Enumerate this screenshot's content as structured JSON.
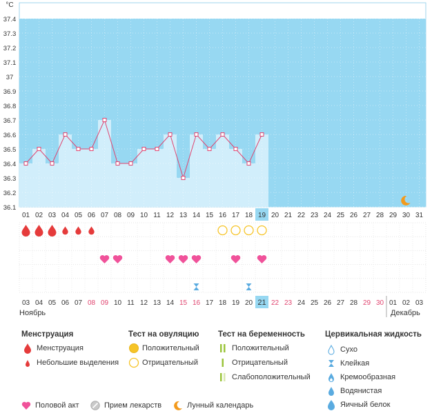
{
  "chart_data": {
    "type": "line",
    "unit": "°C",
    "ylim": [
      36.1,
      37.4
    ],
    "y_ticks": [
      "36.1",
      "36.2",
      "36.3",
      "36.4",
      "36.5",
      "36.6",
      "36.7",
      "36.8",
      "36.9",
      "37",
      "37.1",
      "37.2",
      "37.3",
      "37.4"
    ],
    "cycle_days": [
      "01",
      "02",
      "03",
      "04",
      "05",
      "06",
      "07",
      "08",
      "09",
      "10",
      "11",
      "12",
      "13",
      "14",
      "15",
      "16",
      "17",
      "18",
      "19",
      "20",
      "21",
      "22",
      "23",
      "24",
      "25",
      "26",
      "27",
      "28",
      "29",
      "30",
      "31"
    ],
    "current_day": "19",
    "temperature": [
      36.4,
      36.5,
      36.4,
      36.6,
      36.5,
      36.5,
      36.7,
      36.4,
      36.4,
      36.5,
      36.5,
      36.6,
      36.3,
      36.6,
      36.5,
      36.6,
      36.5,
      36.4,
      36.6
    ],
    "dates": [
      "03",
      "04",
      "05",
      "06",
      "07",
      "08",
      "09",
      "10",
      "11",
      "12",
      "13",
      "14",
      "15",
      "16",
      "17",
      "18",
      "19",
      "20",
      "21",
      "22",
      "23",
      "24",
      "25",
      "26",
      "27",
      "28",
      "29",
      "30",
      "01",
      "02",
      "03"
    ],
    "weekend_dates_index": [
      5,
      6,
      12,
      13,
      19,
      20,
      26,
      27
    ],
    "current_date_index": 18,
    "month_start": "Ноябрь",
    "month_end": "Декабрь",
    "menstruation": [
      "heavy",
      "heavy",
      "heavy",
      "light",
      "light",
      "light",
      null,
      null,
      null,
      null,
      null,
      null,
      null,
      null,
      null,
      null,
      null,
      null,
      null
    ],
    "ovulation_test": [
      null,
      null,
      null,
      null,
      null,
      null,
      null,
      null,
      null,
      null,
      null,
      null,
      null,
      null,
      null,
      "negative",
      "negative",
      "negative",
      "negative"
    ],
    "intercourse_days": [
      7,
      8,
      12,
      13,
      14,
      17,
      19
    ],
    "cervical_sticky_days": [
      14,
      18
    ],
    "lunar_day_index": 29
  },
  "legend": {
    "menstruation": {
      "title": "Менструация",
      "items": [
        "Менструация",
        "Небольшие выделения"
      ]
    },
    "ovulation": {
      "title": "Тест на овуляцию",
      "items": [
        "Положительный",
        "Отрицательный"
      ]
    },
    "pregnancy": {
      "title": "Тест на беременность",
      "items": [
        "Положительный",
        "Отрицательный",
        "Слабоположительный"
      ]
    },
    "cervical": {
      "title": "Цервикальная жидкость",
      "items": [
        "Сухо",
        "Клейкая",
        "Кремообразная",
        "Водянистая",
        "Яичный белок"
      ]
    },
    "bottom": [
      "Половой акт",
      "Прием лекарств",
      "Лунный календарь"
    ]
  },
  "colors": {
    "plot_bg": "#97d8f2",
    "bar_fill": "#d1eefb",
    "line": "#e0446f",
    "highlight": "#97d8f2",
    "weekend": "#e0446f",
    "drop": "#e53b3b",
    "heart": "#f0529a",
    "ovulation": "#f6c427",
    "preg_pos": "#9bc43b",
    "cervical": "#5aabe0",
    "moon": "#f39a1c"
  }
}
